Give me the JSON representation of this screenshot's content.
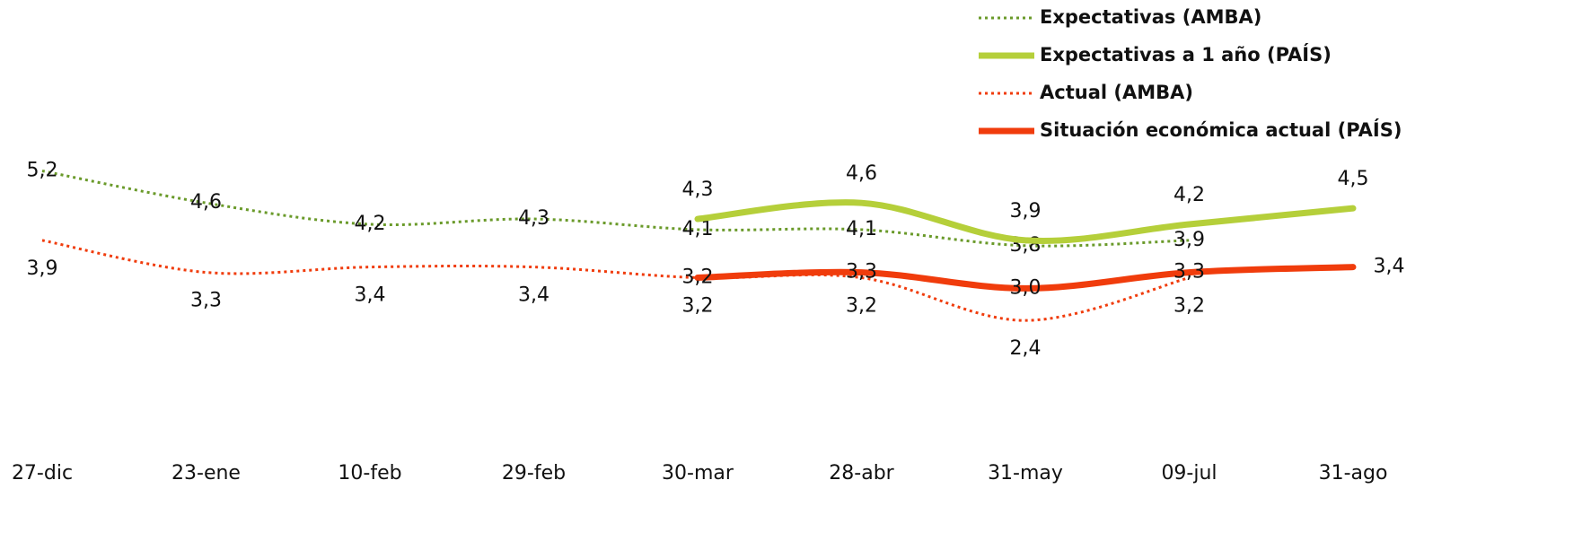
{
  "chart_data": {
    "type": "line",
    "categories": [
      "27-dic",
      "23-ene",
      "10-feb",
      "29-feb",
      "30-mar",
      "28-abr",
      "31-may",
      "09-jul",
      "31-ago"
    ],
    "ylim": [
      0,
      8.4
    ],
    "legend": "top-right",
    "series": [
      {
        "name": "Expectativas (AMBA)",
        "color": "#6a9a2a",
        "style": "dotted",
        "values": [
          5.2,
          4.6,
          4.2,
          4.3,
          4.1,
          4.1,
          3.8,
          3.9,
          null
        ],
        "value_labels": [
          "5,2",
          "4,6",
          "4,2",
          "4,3",
          "4,1",
          "4,1",
          "3,8",
          "3,9",
          null
        ]
      },
      {
        "name": "Expectativas a 1 año (PAÍS)",
        "color": "#b5cf3a",
        "style": "solid",
        "values": [
          null,
          null,
          null,
          null,
          4.3,
          4.6,
          3.9,
          4.2,
          4.5
        ],
        "value_labels": [
          null,
          null,
          null,
          null,
          "4,3",
          "4,6",
          "3,9",
          "4,2",
          "4,5"
        ]
      },
      {
        "name": "Actual (AMBA)",
        "color": "#f03c0c",
        "style": "dotted",
        "values": [
          3.9,
          3.3,
          3.4,
          3.4,
          3.2,
          3.2,
          2.4,
          3.2,
          null
        ],
        "value_labels": [
          "3,9",
          "3,3",
          "3,4",
          "3,4",
          "3,2",
          "3,2",
          "2,4",
          "3,2",
          null
        ]
      },
      {
        "name": "Situación económica actual (PAÍS)",
        "color": "#f03c0c",
        "style": "solid",
        "values": [
          null,
          null,
          null,
          null,
          3.2,
          3.3,
          3.0,
          3.3,
          3.4
        ],
        "value_labels": [
          null,
          null,
          null,
          null,
          "3,2",
          "3,3",
          "3,0",
          "3,3",
          "3,4"
        ]
      }
    ]
  }
}
